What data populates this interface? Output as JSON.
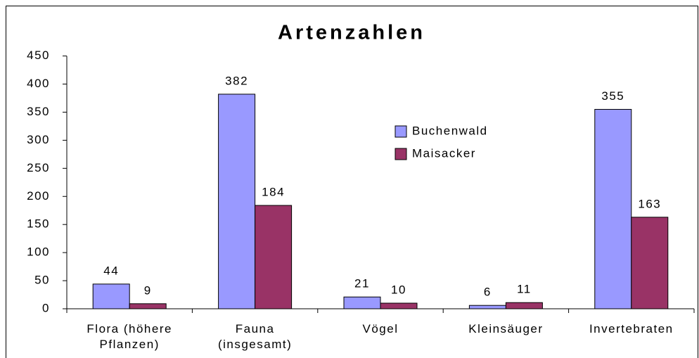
{
  "chart_data": {
    "type": "bar",
    "title": "Artenzahlen",
    "categories": [
      "Flora (höhere Pflanzen)",
      "Fauna (insgesamt)",
      "Vögel",
      "Kleinsäuger",
      "Invertebraten"
    ],
    "series": [
      {
        "name": "Buchenwald",
        "color": "#9999ff",
        "values": [
          44,
          382,
          21,
          6,
          355
        ]
      },
      {
        "name": "Maisacker",
        "color": "#993366",
        "values": [
          9,
          184,
          10,
          11,
          163
        ]
      }
    ],
    "ylim": [
      0,
      450
    ],
    "yticks": [
      0,
      50,
      100,
      150,
      200,
      250,
      300,
      350,
      400,
      450
    ],
    "grid": false,
    "legend": "center",
    "data_labels": true
  }
}
